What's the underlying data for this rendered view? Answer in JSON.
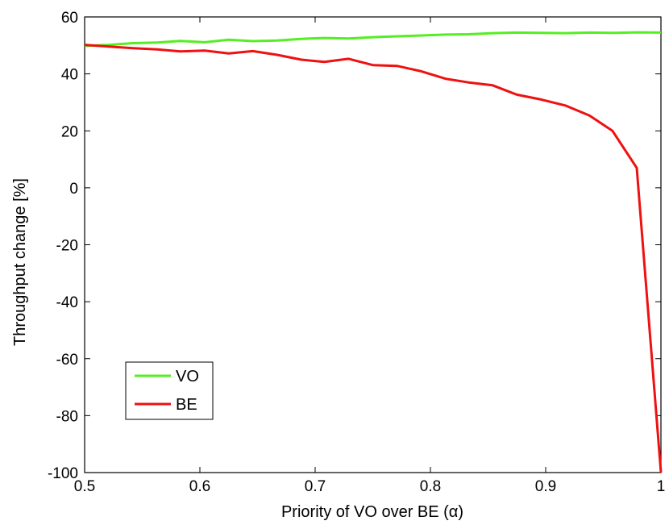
{
  "chart_data": {
    "type": "line",
    "title": "",
    "xlabel": "Priority of VO over BE (α)",
    "ylabel": "Throughput change [%]",
    "xlim": [
      0.5,
      1.0
    ],
    "ylim": [
      -100,
      60
    ],
    "grid": false,
    "legend_position": "bottom-left",
    "xticks": [
      0.5,
      0.6,
      0.7,
      0.8,
      0.9,
      1.0
    ],
    "xtick_labels": [
      "0.5",
      "0.6",
      "0.7",
      "0.8",
      "0.9",
      "1"
    ],
    "yticks": [
      -100,
      -80,
      -60,
      -40,
      -20,
      0,
      20,
      40,
      60
    ],
    "ytick_labels": [
      "-100",
      "-80",
      "-60",
      "-40",
      "-20",
      "0",
      "20",
      "40",
      "60"
    ],
    "x": [
      0.5,
      0.521,
      0.542,
      0.563,
      0.583,
      0.604,
      0.625,
      0.646,
      0.667,
      0.688,
      0.708,
      0.729,
      0.75,
      0.771,
      0.792,
      0.813,
      0.833,
      0.854,
      0.875,
      0.896,
      0.917,
      0.938,
      0.958,
      0.979,
      1.0
    ],
    "series": [
      {
        "name": "VO",
        "color": "#55ee22",
        "values": [
          49.8,
          50.2,
          50.8,
          51.0,
          51.6,
          51.1,
          52.0,
          51.5,
          51.7,
          52.3,
          52.6,
          52.4,
          52.9,
          53.2,
          53.5,
          53.8,
          53.9,
          54.3,
          54.5,
          54.4,
          54.3,
          54.5,
          54.4,
          54.6,
          54.5
        ]
      },
      {
        "name": "BE",
        "color": "#ee1111",
        "values": [
          50.2,
          49.6,
          49.0,
          48.6,
          47.9,
          48.2,
          47.2,
          48.0,
          46.7,
          45.0,
          44.2,
          45.3,
          43.1,
          42.8,
          40.9,
          38.3,
          37.0,
          36.0,
          32.7,
          31.0,
          28.9,
          25.4,
          20.0,
          7.0,
          -100.0
        ]
      }
    ]
  }
}
